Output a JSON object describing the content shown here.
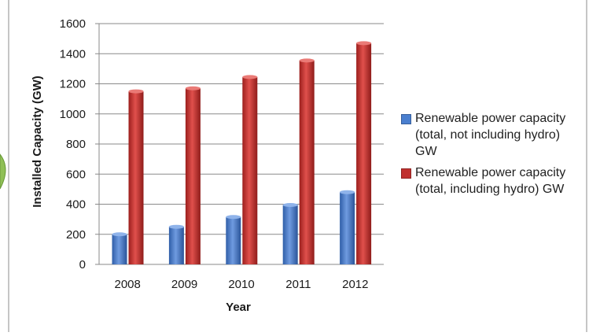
{
  "chart_data": {
    "type": "bar",
    "categories": [
      "2008",
      "2009",
      "2010",
      "2011",
      "2012"
    ],
    "series": [
      {
        "name": "Renewable power capacity (total, not including hydro) GW",
        "values": [
          200,
          250,
          315,
          395,
          480
        ],
        "color": "#4a7fcf"
      },
      {
        "name": "Renewable power capacity (total, including hydro) GW",
        "values": [
          1150,
          1170,
          1245,
          1355,
          1470
        ],
        "color": "#c0312f"
      }
    ],
    "title": "",
    "xlabel": "Year",
    "ylabel": "Installed Capacity (GW)",
    "ylim": [
      0,
      1600
    ],
    "yticks": [
      0,
      200,
      400,
      600,
      800,
      1000,
      1200,
      1400,
      1600
    ],
    "grid": true,
    "legend_position": "right"
  }
}
